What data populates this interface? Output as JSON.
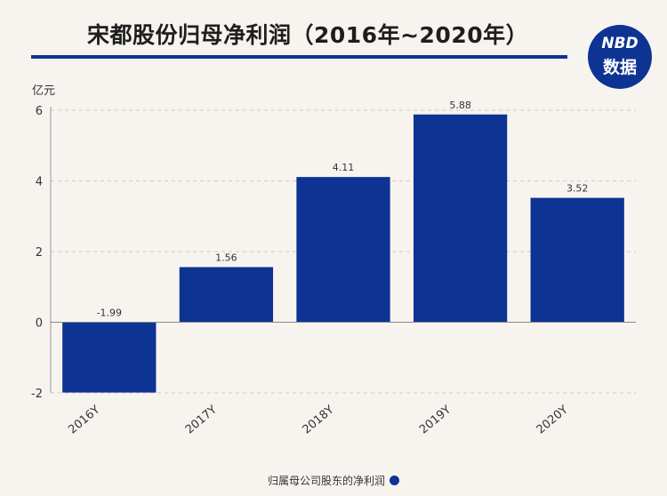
{
  "title": "宋都股份归母净利润（2016年~2020年）",
  "logo": {
    "line1": "NBD",
    "line2": "数据"
  },
  "unit_label": "亿元",
  "colors": {
    "bar": "#0d3393",
    "background": "#f7f4f0"
  },
  "chart_data": {
    "type": "bar",
    "categories": [
      "2016Y",
      "2017Y",
      "2018Y",
      "2019Y",
      "2020Y"
    ],
    "series": [
      {
        "name": "归属母公司股东的净利润",
        "values": [
          -1.99,
          1.56,
          4.11,
          5.88,
          3.52
        ]
      }
    ],
    "data_labels": [
      "-1.99",
      "1.56",
      "4.11",
      "5.88",
      "3.52"
    ],
    "ylabel": "亿元",
    "ylim": [
      -2,
      6
    ],
    "yticks": [
      -2,
      0,
      2,
      4,
      6
    ],
    "grid": true,
    "legend_position": "bottom"
  }
}
